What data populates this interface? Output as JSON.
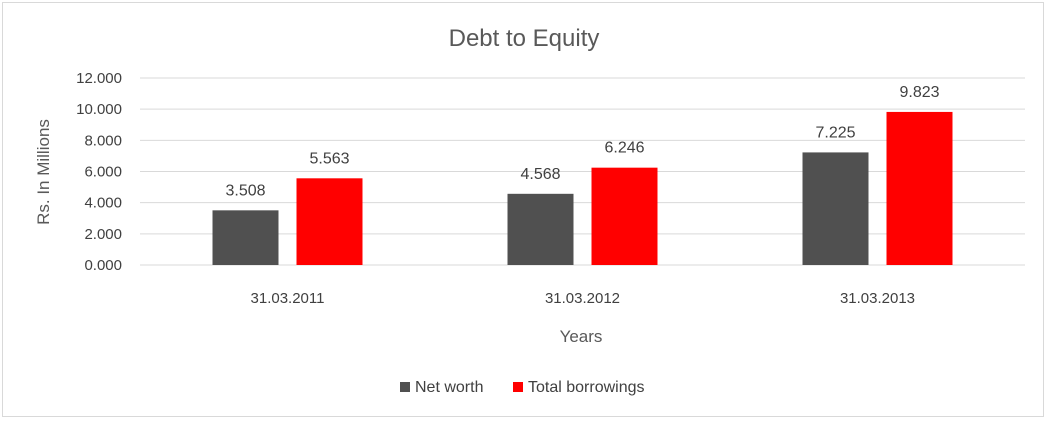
{
  "chart_data": {
    "type": "bar",
    "title": "Debt to Equity",
    "xlabel": "Years",
    "ylabel": "Rs. In Millions",
    "categories": [
      "31.03.2011",
      "31.03.2012",
      "31.03.2013"
    ],
    "series": [
      {
        "name": "Net worth",
        "values": [
          3.508,
          4.568,
          7.225
        ],
        "color": "#505050"
      },
      {
        "name": "Total borrowings",
        "values": [
          5.563,
          6.246,
          9.823
        ],
        "color": "#ff0000"
      }
    ],
    "ylim": [
      0,
      12
    ],
    "yticks": [
      "0.000",
      "2.000",
      "4.000",
      "6.000",
      "8.000",
      "10.000",
      "12.000"
    ],
    "data_labels": [
      [
        "3.508",
        "4.568",
        "7.225"
      ],
      [
        "5.563",
        "6.246",
        "9.823"
      ]
    ],
    "grid": true,
    "gridline_color": "#d9d9d9",
    "legend_position": "bottom"
  }
}
